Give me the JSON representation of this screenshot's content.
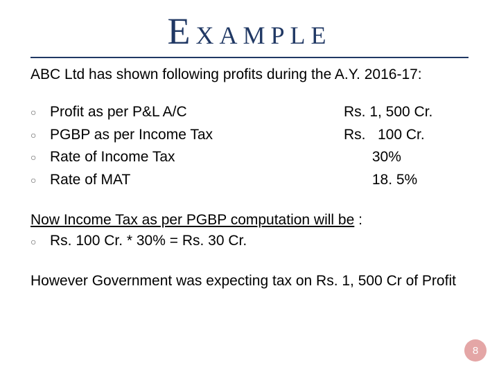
{
  "title_cap": "E",
  "title_rest": "XAMPLE",
  "intro": "ABC Ltd has shown following profits during the A.Y. 2016-17:",
  "items": [
    {
      "label": "Profit as per P&L A/C",
      "value": "Rs. 1, 500 Cr."
    },
    {
      "label": "PGBP as per Income Tax",
      "value": "Rs.   100 Cr."
    },
    {
      "label": "Rate of Income Tax",
      "value": "       30%"
    },
    {
      "label": "Rate of MAT",
      "value": "       18. 5%"
    }
  ],
  "subhead_underlined": "Now Income Tax as per PGBP computation will be",
  "subhead_tail": " :",
  "calc": "Rs. 100 Cr. * 30% = Rs. 30 Cr.",
  "footer": "However Government was expecting tax on Rs. 1, 500 Cr of Profit",
  "page_number": "8",
  "colors": {
    "title": "#203864",
    "badge_bg": "#e4a6a6",
    "badge_fg": "#ffffff"
  }
}
